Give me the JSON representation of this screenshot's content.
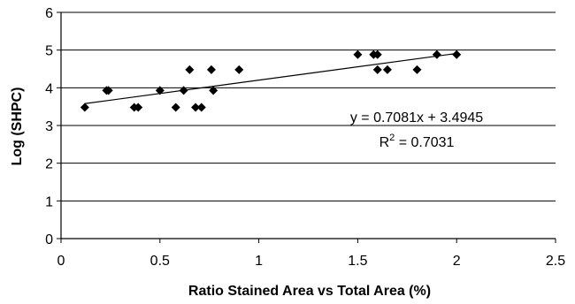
{
  "chart_data": {
    "type": "scatter",
    "xlabel": "Ratio Stained Area vs Total Area (%)",
    "ylabel": "Log (SHPC)",
    "xlim": [
      0,
      2.5
    ],
    "ylim": [
      0,
      6
    ],
    "x_ticks": [
      "0",
      "0.5",
      "1",
      "1.5",
      "2",
      "2.5"
    ],
    "y_ticks": [
      "0",
      "1",
      "2",
      "3",
      "4",
      "5",
      "6"
    ],
    "grid": "horizontal",
    "series": [
      {
        "marker": "diamond",
        "color": "#000000",
        "points": [
          [
            0.12,
            3.48
          ],
          [
            0.23,
            3.93
          ],
          [
            0.24,
            3.93
          ],
          [
            0.37,
            3.48
          ],
          [
            0.39,
            3.48
          ],
          [
            0.5,
            3.93
          ],
          [
            0.58,
            3.48
          ],
          [
            0.62,
            3.93
          ],
          [
            0.65,
            4.48
          ],
          [
            0.68,
            3.48
          ],
          [
            0.71,
            3.48
          ],
          [
            0.76,
            4.48
          ],
          [
            0.77,
            3.93
          ],
          [
            0.9,
            4.48
          ],
          [
            1.5,
            4.88
          ],
          [
            1.58,
            4.88
          ],
          [
            1.6,
            4.88
          ],
          [
            1.6,
            4.48
          ],
          [
            1.65,
            4.48
          ],
          [
            1.8,
            4.48
          ],
          [
            1.9,
            4.88
          ],
          [
            2.0,
            4.88
          ]
        ]
      }
    ],
    "trendline": {
      "slope": 0.7081,
      "intercept": 3.4945,
      "x_range": [
        0.12,
        2.0
      ]
    },
    "annotations": {
      "equation": "y = 0.7081x + 3.4945",
      "r2_prefix": "R",
      "r2_sup": "2",
      "r2_value": " = 0.7031"
    }
  }
}
